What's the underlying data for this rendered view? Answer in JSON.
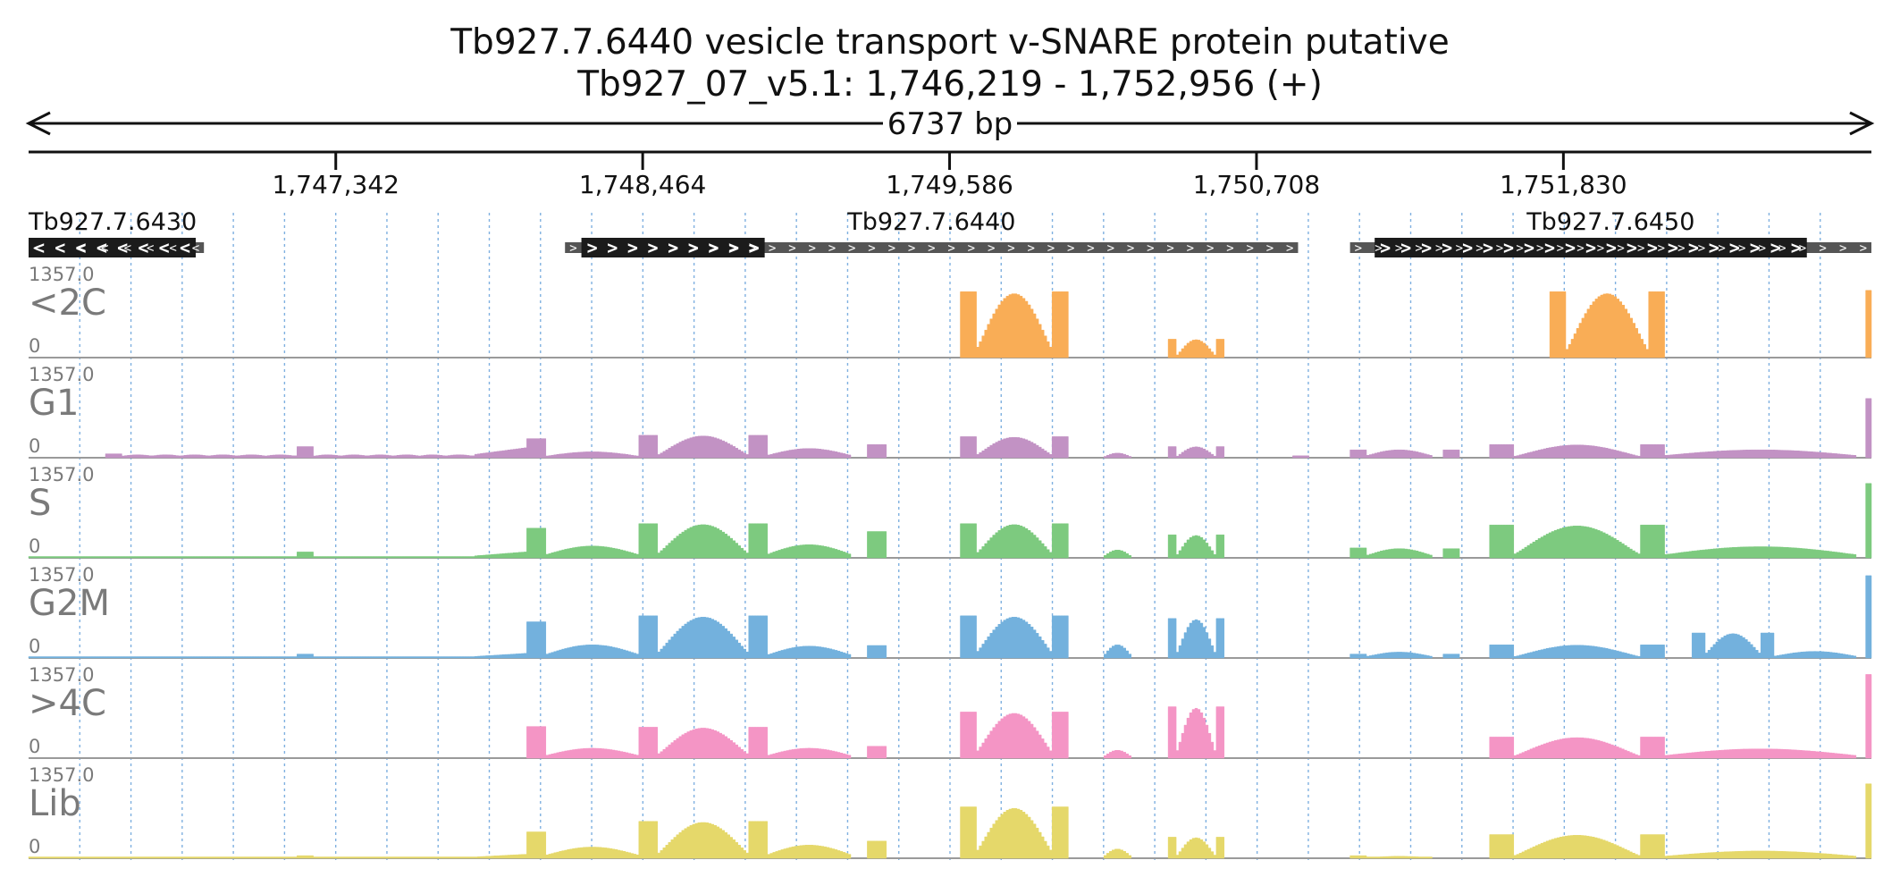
{
  "title": "Tb927.7.6440  vesicle transport v-SNARE protein  putative",
  "subtitle": "Tb927_07_v5.1: 1,746,219 - 1,752,956 (+)",
  "region_size_label": "6737 bp",
  "chart_data": {
    "type": "coverage-tracks",
    "region": {
      "chrom": "Tb927_07_v5.1",
      "start": 1746219,
      "end": 1752956,
      "strand": "+"
    },
    "ruler_ticks": [
      {
        "pos": 1747342,
        "label": "1,747,342"
      },
      {
        "pos": 1748464,
        "label": "1,748,464"
      },
      {
        "pos": 1749586,
        "label": "1,749,586"
      },
      {
        "pos": 1750708,
        "label": "1,750,708"
      },
      {
        "pos": 1751830,
        "label": "1,751,830"
      }
    ],
    "genes": [
      {
        "name": "Tb927.7.6430",
        "strand": "-",
        "start": 1746219,
        "end": 1746860,
        "cds_start": 1746219,
        "cds_end": 1746830
      },
      {
        "name": "Tb927.7.6440",
        "strand": "+",
        "start": 1748180,
        "end": 1750860,
        "cds_start": 1748240,
        "cds_end": 1748910
      },
      {
        "name": "Tb927.7.6450",
        "strand": "+",
        "start": 1751050,
        "end": 1752956,
        "cds_start": 1751140,
        "cds_end": 1752720
      }
    ],
    "y_scale": {
      "max_label": "1357.0",
      "min_label": "0",
      "max": 1357
    },
    "tracks": [
      {
        "name": "<2C",
        "color": "#f9ad56",
        "segments": [
          {
            "start": 1749625,
            "end": 1750020,
            "pattern": "flank-hump",
            "peak": 1000
          },
          {
            "start": 1750385,
            "end": 1750590,
            "pattern": "flank-hump",
            "peak": 280
          },
          {
            "start": 1751780,
            "end": 1752200,
            "pattern": "flank-hump",
            "peak": 1000
          },
          {
            "start": 1752935,
            "end": 1752956,
            "pattern": "flat",
            "peak": 1020
          }
        ]
      },
      {
        "name": "G1",
        "color": "#c292c4",
        "segments": [
          {
            "start": 1746500,
            "end": 1746560,
            "pattern": "flat",
            "peak": 60
          },
          {
            "start": 1746560,
            "end": 1747200,
            "pattern": "low",
            "peak": 45
          },
          {
            "start": 1747200,
            "end": 1747260,
            "pattern": "flat",
            "peak": 170
          },
          {
            "start": 1747260,
            "end": 1747850,
            "pattern": "low",
            "peak": 45
          },
          {
            "start": 1747850,
            "end": 1748040,
            "pattern": "rise",
            "peak": 150
          },
          {
            "start": 1748040,
            "end": 1748110,
            "pattern": "flat",
            "peak": 290
          },
          {
            "start": 1748110,
            "end": 1748450,
            "pattern": "hump",
            "peak": 90
          },
          {
            "start": 1748450,
            "end": 1748920,
            "pattern": "flank-hump",
            "peak": 340
          },
          {
            "start": 1748920,
            "end": 1749225,
            "pattern": "hump",
            "peak": 140
          },
          {
            "start": 1749285,
            "end": 1749355,
            "pattern": "flat",
            "peak": 200
          },
          {
            "start": 1749625,
            "end": 1750020,
            "pattern": "flank-hump",
            "peak": 320
          },
          {
            "start": 1750150,
            "end": 1750250,
            "pattern": "hump",
            "peak": 70
          },
          {
            "start": 1750385,
            "end": 1750590,
            "pattern": "flank-hump",
            "peak": 170
          },
          {
            "start": 1750840,
            "end": 1750900,
            "pattern": "flat",
            "peak": 30
          },
          {
            "start": 1751050,
            "end": 1751110,
            "pattern": "flat",
            "peak": 120
          },
          {
            "start": 1751110,
            "end": 1751350,
            "pattern": "hump",
            "peak": 120
          },
          {
            "start": 1751390,
            "end": 1751450,
            "pattern": "flat",
            "peak": 120
          },
          {
            "start": 1751560,
            "end": 1752200,
            "pattern": "flank-hump",
            "peak": 200
          },
          {
            "start": 1752200,
            "end": 1752900,
            "pattern": "hump",
            "peak": 120
          },
          {
            "start": 1752935,
            "end": 1752956,
            "pattern": "flat",
            "peak": 900
          }
        ]
      },
      {
        "name": "S",
        "color": "#7dca7f",
        "segments": [
          {
            "start": 1746219,
            "end": 1747200,
            "pattern": "low",
            "peak": 20
          },
          {
            "start": 1747200,
            "end": 1747260,
            "pattern": "flat",
            "peak": 90
          },
          {
            "start": 1747260,
            "end": 1747850,
            "pattern": "low",
            "peak": 20
          },
          {
            "start": 1747850,
            "end": 1748040,
            "pattern": "rise",
            "peak": 90
          },
          {
            "start": 1748040,
            "end": 1748110,
            "pattern": "flat",
            "peak": 450
          },
          {
            "start": 1748110,
            "end": 1748450,
            "pattern": "hump",
            "peak": 180
          },
          {
            "start": 1748450,
            "end": 1748920,
            "pattern": "flank-hump",
            "peak": 520
          },
          {
            "start": 1748920,
            "end": 1749225,
            "pattern": "hump",
            "peak": 200
          },
          {
            "start": 1749285,
            "end": 1749355,
            "pattern": "flat",
            "peak": 400
          },
          {
            "start": 1749625,
            "end": 1750020,
            "pattern": "flank-hump",
            "peak": 520
          },
          {
            "start": 1750150,
            "end": 1750250,
            "pattern": "hump",
            "peak": 120
          },
          {
            "start": 1750385,
            "end": 1750590,
            "pattern": "flank-hump",
            "peak": 350
          },
          {
            "start": 1751050,
            "end": 1751110,
            "pattern": "flat",
            "peak": 150
          },
          {
            "start": 1751110,
            "end": 1751350,
            "pattern": "hump",
            "peak": 140
          },
          {
            "start": 1751390,
            "end": 1751450,
            "pattern": "flat",
            "peak": 140
          },
          {
            "start": 1751560,
            "end": 1752200,
            "pattern": "flank-hump",
            "peak": 500
          },
          {
            "start": 1752200,
            "end": 1752900,
            "pattern": "hump",
            "peak": 170
          },
          {
            "start": 1752935,
            "end": 1752956,
            "pattern": "flat",
            "peak": 1130
          }
        ]
      },
      {
        "name": "G2M",
        "color": "#73b1dd",
        "segments": [
          {
            "start": 1746219,
            "end": 1747200,
            "pattern": "low",
            "peak": 15
          },
          {
            "start": 1747200,
            "end": 1747260,
            "pattern": "flat",
            "peak": 60
          },
          {
            "start": 1747260,
            "end": 1747850,
            "pattern": "low",
            "peak": 20
          },
          {
            "start": 1747850,
            "end": 1748040,
            "pattern": "rise",
            "peak": 70
          },
          {
            "start": 1748040,
            "end": 1748110,
            "pattern": "flat",
            "peak": 550
          },
          {
            "start": 1748110,
            "end": 1748450,
            "pattern": "hump",
            "peak": 200
          },
          {
            "start": 1748450,
            "end": 1748920,
            "pattern": "flank-hump",
            "peak": 640
          },
          {
            "start": 1748920,
            "end": 1749225,
            "pattern": "hump",
            "peak": 180
          },
          {
            "start": 1749285,
            "end": 1749355,
            "pattern": "flat",
            "peak": 190
          },
          {
            "start": 1749625,
            "end": 1750020,
            "pattern": "flank-hump",
            "peak": 640
          },
          {
            "start": 1750150,
            "end": 1750250,
            "pattern": "hump",
            "peak": 200
          },
          {
            "start": 1750385,
            "end": 1750590,
            "pattern": "flank-hump",
            "peak": 600
          },
          {
            "start": 1751050,
            "end": 1751110,
            "pattern": "flat",
            "peak": 60
          },
          {
            "start": 1751110,
            "end": 1751350,
            "pattern": "hump",
            "peak": 90
          },
          {
            "start": 1751390,
            "end": 1751450,
            "pattern": "flat",
            "peak": 60
          },
          {
            "start": 1751560,
            "end": 1752200,
            "pattern": "flank-hump",
            "peak": 200
          },
          {
            "start": 1752300,
            "end": 1752600,
            "pattern": "flank-hump",
            "peak": 380
          },
          {
            "start": 1752600,
            "end": 1752900,
            "pattern": "hump",
            "peak": 100
          },
          {
            "start": 1752935,
            "end": 1752956,
            "pattern": "flat",
            "peak": 1250
          }
        ]
      },
      {
        "name": ">4C",
        "color": "#f495c5",
        "segments": [
          {
            "start": 1748040,
            "end": 1748110,
            "pattern": "flat",
            "peak": 480
          },
          {
            "start": 1748110,
            "end": 1748450,
            "pattern": "hump",
            "peak": 150
          },
          {
            "start": 1748450,
            "end": 1748920,
            "pattern": "flank-hump",
            "peak": 470
          },
          {
            "start": 1748920,
            "end": 1749225,
            "pattern": "hump",
            "peak": 150
          },
          {
            "start": 1749285,
            "end": 1749355,
            "pattern": "flat",
            "peak": 180
          },
          {
            "start": 1749625,
            "end": 1750020,
            "pattern": "flank-hump",
            "peak": 700
          },
          {
            "start": 1750150,
            "end": 1750250,
            "pattern": "hump",
            "peak": 120
          },
          {
            "start": 1750385,
            "end": 1750590,
            "pattern": "flank-hump",
            "peak": 780
          },
          {
            "start": 1751560,
            "end": 1752200,
            "pattern": "flank-hump",
            "peak": 320
          },
          {
            "start": 1752200,
            "end": 1752900,
            "pattern": "hump",
            "peak": 140
          },
          {
            "start": 1752935,
            "end": 1752956,
            "pattern": "flat",
            "peak": 1270
          }
        ]
      },
      {
        "name": "Lib",
        "color": "#e5d86a",
        "segments": [
          {
            "start": 1746219,
            "end": 1747200,
            "pattern": "low",
            "peak": 15
          },
          {
            "start": 1747200,
            "end": 1747260,
            "pattern": "flat",
            "peak": 40
          },
          {
            "start": 1747260,
            "end": 1747850,
            "pattern": "low",
            "peak": 20
          },
          {
            "start": 1747850,
            "end": 1748040,
            "pattern": "rise",
            "peak": 60
          },
          {
            "start": 1748040,
            "end": 1748110,
            "pattern": "flat",
            "peak": 400
          },
          {
            "start": 1748110,
            "end": 1748450,
            "pattern": "hump",
            "peak": 170
          },
          {
            "start": 1748450,
            "end": 1748920,
            "pattern": "flank-hump",
            "peak": 560
          },
          {
            "start": 1748920,
            "end": 1749225,
            "pattern": "hump",
            "peak": 200
          },
          {
            "start": 1749285,
            "end": 1749355,
            "pattern": "flat",
            "peak": 260
          },
          {
            "start": 1749625,
            "end": 1750020,
            "pattern": "flank-hump",
            "peak": 780
          },
          {
            "start": 1750150,
            "end": 1750250,
            "pattern": "hump",
            "peak": 140
          },
          {
            "start": 1750385,
            "end": 1750590,
            "pattern": "flank-hump",
            "peak": 320
          },
          {
            "start": 1751050,
            "end": 1751110,
            "pattern": "flat",
            "peak": 40
          },
          {
            "start": 1751110,
            "end": 1751350,
            "pattern": "hump",
            "peak": 30
          },
          {
            "start": 1751560,
            "end": 1752200,
            "pattern": "flank-hump",
            "peak": 360
          },
          {
            "start": 1752200,
            "end": 1752900,
            "pattern": "hump",
            "peak": 110
          },
          {
            "start": 1752935,
            "end": 1752956,
            "pattern": "flat",
            "peak": 1130
          }
        ]
      }
    ]
  }
}
